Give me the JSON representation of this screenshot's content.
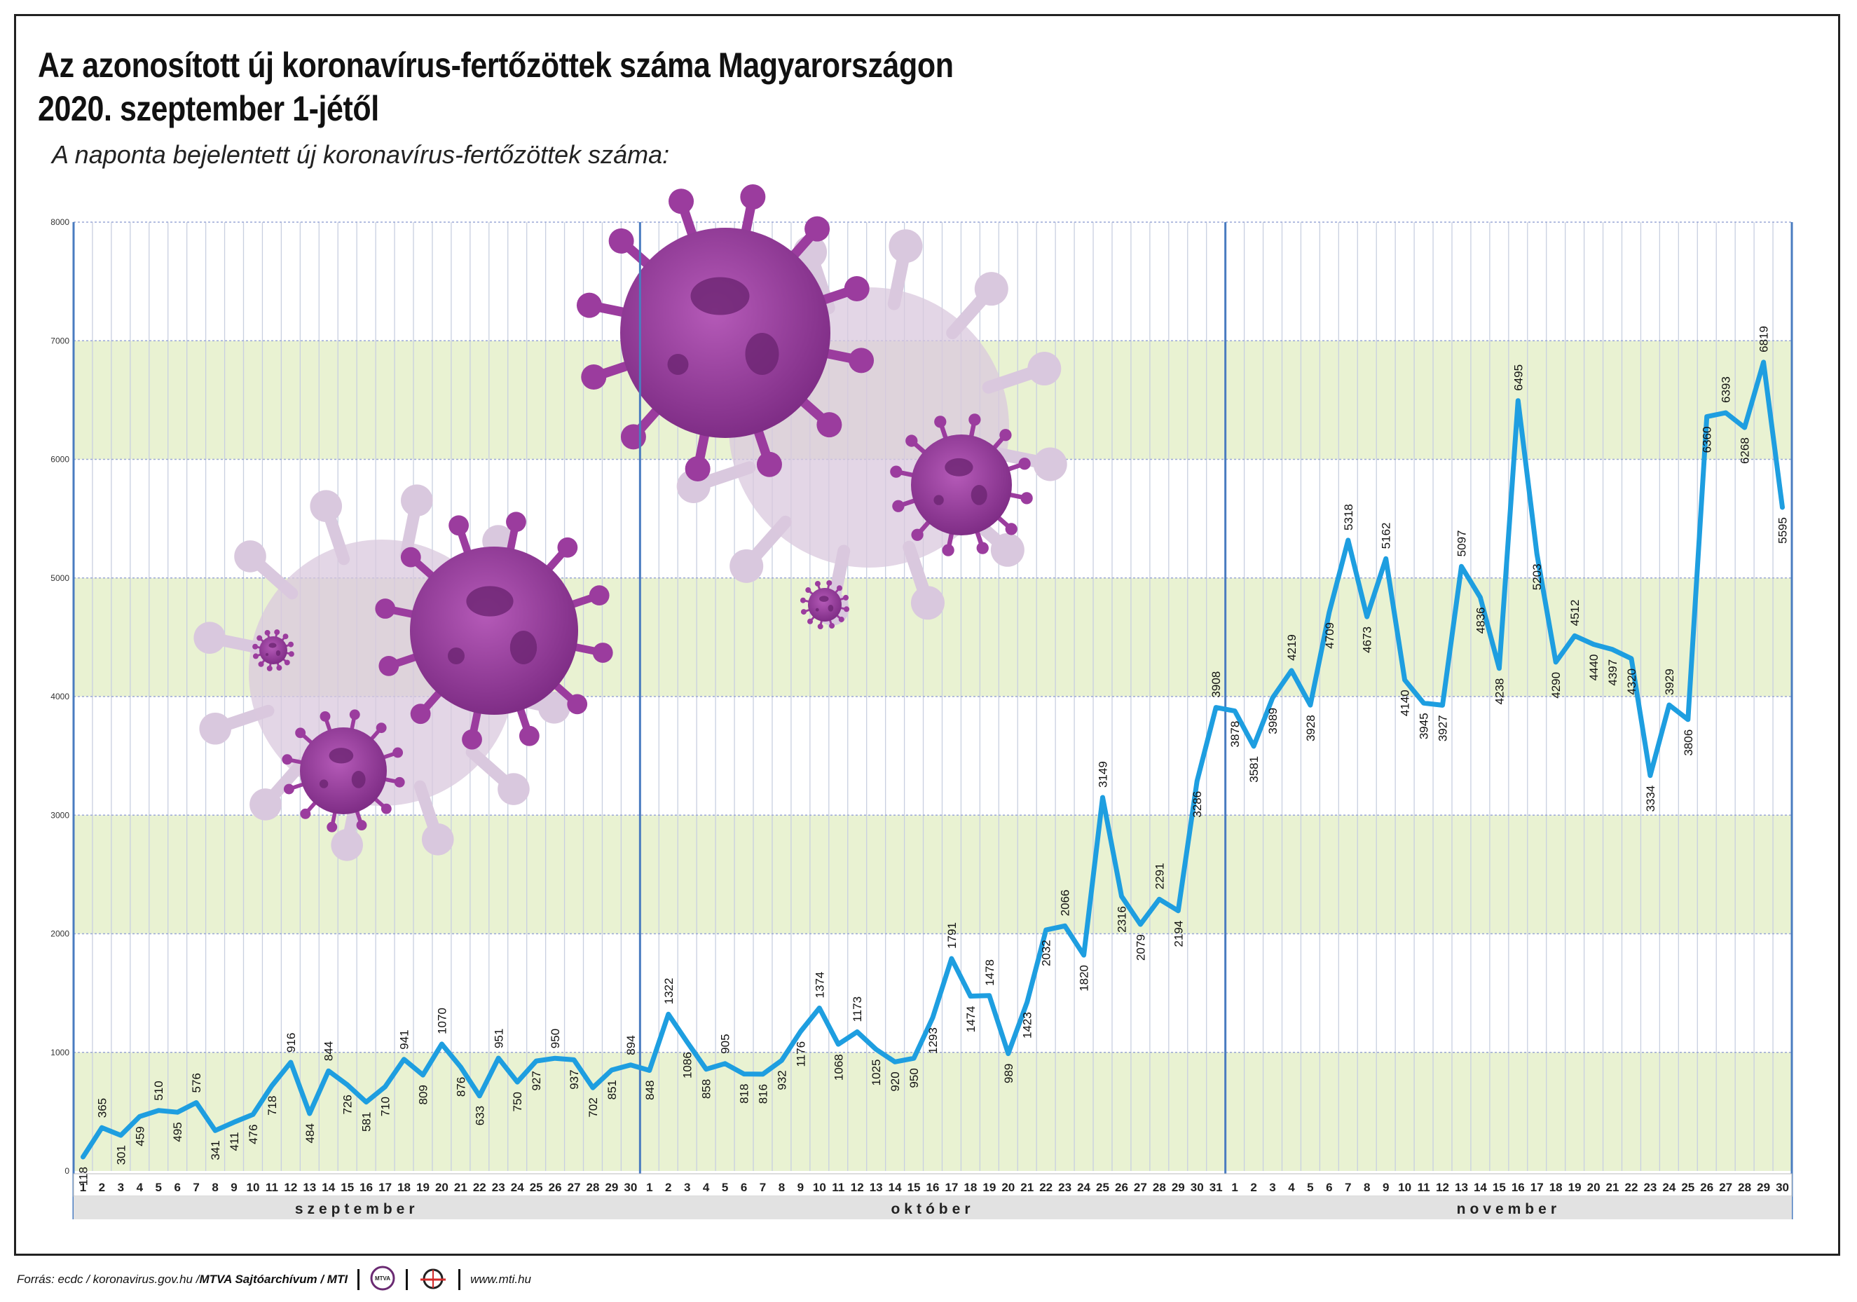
{
  "title_line1": "Az azonosított új koronavírus-fertőzöttek száma Magyarországon",
  "title_line2": "2020. szeptember 1-jétől",
  "subtitle": "A naponta bejelentett új koronavírus-fertőzöttek száma:",
  "footer": {
    "source": "Forrás: ecdc / koronavirus.gov.hu / ",
    "credit": "MTVA Sajtóarchívum / MTI",
    "logo1_text": "MTVA",
    "url": "www.mti.hu"
  },
  "colors": {
    "line": "#1e9ee0",
    "band": "#e9f2d2",
    "month_divider": "#4a7cc0",
    "virus": "#9b3c9e",
    "virus_faded": "#d9c8de"
  },
  "chart_data": {
    "type": "line",
    "title": "Az azonosított új koronavírus-fertőzöttek száma Magyarországon 2020. szeptember 1-jétől",
    "subtitle": "A naponta bejelentett új koronavírus-fertőzöttek száma:",
    "xlabel": "",
    "ylabel": "",
    "ylim": [
      0,
      8000
    ],
    "yticks": [
      "0",
      "1000",
      "2000",
      "3000",
      "4000",
      "5000",
      "6000",
      "7000",
      "8000"
    ],
    "months": [
      "szeptember",
      "október",
      "november"
    ],
    "month_days": [
      30,
      31,
      30
    ],
    "grid": true,
    "series": [
      {
        "values": [
          118,
          365,
          301,
          459,
          510,
          495,
          576,
          341,
          411,
          476,
          718,
          916,
          484,
          844,
          726,
          581,
          710,
          941,
          809,
          1070,
          876,
          633,
          951,
          750,
          927,
          950,
          937,
          702,
          851,
          894,
          848,
          1322,
          1086,
          858,
          905,
          818,
          816,
          932,
          1176,
          1374,
          1068,
          1173,
          1025,
          920,
          950,
          1293,
          1791,
          1474,
          1478,
          989,
          1423,
          2032,
          2066,
          1820,
          3149,
          2316,
          2079,
          2291,
          2194,
          3286,
          3908,
          3878,
          3581,
          3989,
          4219,
          3928,
          4709,
          5318,
          4673,
          5162,
          4140,
          3945,
          3927,
          5097,
          4836,
          4238,
          6495,
          5203,
          4290,
          4512,
          4440,
          4397,
          4320,
          3334,
          3929,
          3806,
          6360,
          6393,
          6268,
          6819,
          5595
        ]
      }
    ]
  }
}
